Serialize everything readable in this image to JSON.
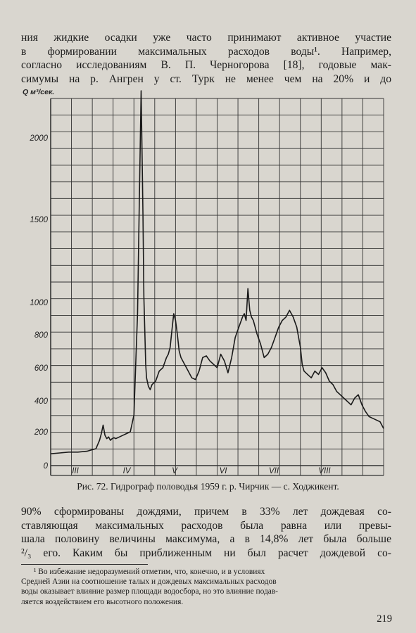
{
  "text_top": [
    "ния жидкие осадки уже часто принимают активное участие",
    "в формировании максимальных расходов воды¹. Например,",
    "согласно исследованиям В. П. Черногорова [18], годовые мак-",
    "симумы на р. Ангрен у ст. Турк не менее чем на 20% и до"
  ],
  "caption": "Рис. 72. Гидрограф половодья 1959 г. р. Чирчик — с. Ходжикент.",
  "text_bottom": [
    "90% сформированы дождями, причем в 33% лет дождевая со-",
    "ставляющая максимальных расходов была равна или превы-",
    "шала половину величины максимума, а в 14,8% лет была больше",
    "²/₃ его. Каким бы приближенным ни был расчет дождевой со-"
  ],
  "footnote": [
    "¹ Во избежание недоразумений отметим, что, конечно, и в условиях",
    "Средней Азии на соотношение талых и дождевых максимальных расходов",
    "воды оказывает влияние размер площади водосбора, но это влияние подав-",
    "ляется воздействием его высотного положения."
  ],
  "page_number": "219",
  "chart_data": {
    "type": "line",
    "ylabel": "Q м³/сек.",
    "ylim": [
      0,
      2100
    ],
    "yticks": [
      0,
      200,
      400,
      600,
      800,
      1000,
      1500,
      2000
    ],
    "months": [
      "III",
      "IV",
      "V",
      "VI",
      "VII",
      "VIII"
    ],
    "x_range": [
      0,
      184
    ],
    "series": [
      {
        "x": [
          0,
          5,
          10,
          15,
          20,
          25,
          27,
          28,
          29,
          30,
          31,
          32,
          33,
          34,
          35,
          36,
          38,
          40,
          42,
          44,
          46,
          47,
          48,
          49,
          50,
          51,
          51.5,
          52,
          52.5,
          53,
          54,
          55,
          56,
          58,
          60,
          62,
          64,
          65,
          66,
          67,
          68,
          69,
          70,
          71,
          72,
          73,
          74,
          75,
          76,
          78,
          80,
          82,
          84,
          86,
          88,
          90,
          92,
          94,
          96,
          98,
          100,
          102,
          104,
          106,
          107,
          108,
          109,
          110,
          111,
          112,
          114,
          116,
          118,
          120,
          122,
          124,
          126,
          128,
          130,
          132,
          134,
          136,
          137,
          138,
          139,
          140,
          142,
          144,
          146,
          148,
          150,
          152,
          154,
          156,
          158,
          160,
          162,
          164,
          166,
          168,
          170,
          172,
          174,
          176,
          178,
          180,
          182,
          184
        ],
        "y": [
          70,
          75,
          80,
          80,
          85,
          100,
          150,
          190,
          240,
          180,
          160,
          170,
          150,
          160,
          165,
          160,
          170,
          180,
          190,
          200,
          300,
          600,
          900,
          1600,
          2250,
          1500,
          1000,
          800,
          600,
          520,
          470,
          450,
          480,
          500,
          560,
          580,
          640,
          660,
          700,
          800,
          900,
          860,
          780,
          680,
          640,
          620,
          600,
          580,
          560,
          520,
          510,
          560,
          640,
          650,
          620,
          600,
          580,
          660,
          620,
          550,
          640,
          760,
          820,
          880,
          900,
          860,
          1050,
          920,
          880,
          860,
          780,
          720,
          640,
          660,
          700,
          760,
          820,
          860,
          880,
          920,
          880,
          820,
          760,
          700,
          600,
          560,
          540,
          520,
          560,
          540,
          580,
          550,
          500,
          480,
          440,
          420,
          400,
          380,
          360,
          400,
          420,
          360,
          320,
          290,
          280,
          270,
          260,
          220
        ]
      }
    ]
  }
}
